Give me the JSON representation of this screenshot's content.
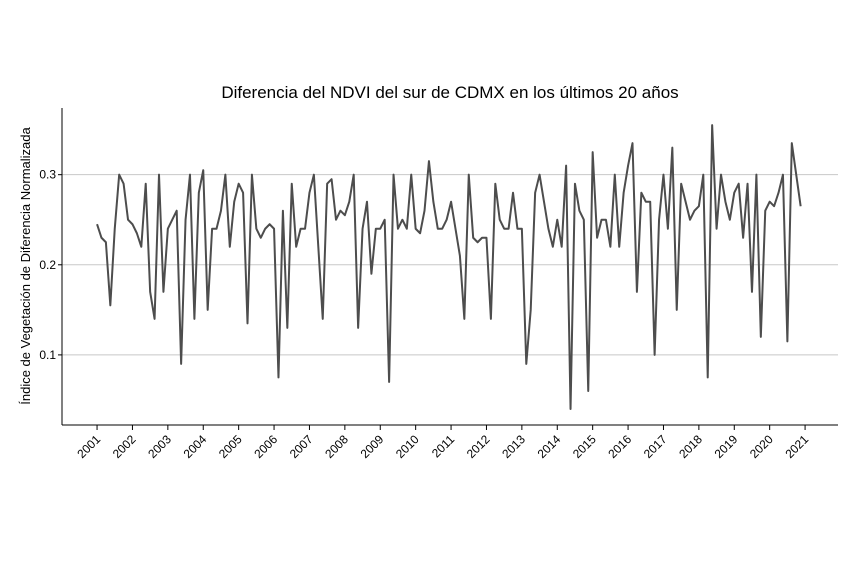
{
  "chart_data": {
    "type": "line",
    "title": "Diferencia del NDVI del sur de CDMX en los últimos 20 años",
    "y_label": "Índice de Vegetación de Diferencia Normalizada",
    "xlim": [
      2000.01,
      2021.93
    ],
    "ylim": [
      0.0222,
      0.374
    ],
    "xticks": [
      2001,
      2002,
      2003,
      2004,
      2005,
      2006,
      2007,
      2008,
      2009,
      2010,
      2011,
      2012,
      2013,
      2014,
      2015,
      2016,
      2017,
      2018,
      2019,
      2020,
      2021
    ],
    "yticks": [
      0.1,
      0.2,
      0.3
    ],
    "grid": true,
    "series": [
      {
        "color": "#4d4d4d",
        "x": [
          2001,
          2001.125,
          2001.25,
          2001.375,
          2001.5,
          2001.625,
          2001.75,
          2001.875,
          2002,
          2002.125,
          2002.25,
          2002.375,
          2002.5,
          2002.625,
          2002.75,
          2002.875,
          2003,
          2003.125,
          2003.25,
          2003.375,
          2003.5,
          2003.625,
          2003.75,
          2003.875,
          2004,
          2004.125,
          2004.25,
          2004.375,
          2004.5,
          2004.625,
          2004.75,
          2004.875,
          2005,
          2005.125,
          2005.25,
          2005.375,
          2005.5,
          2005.625,
          2005.75,
          2005.875,
          2006,
          2006.125,
          2006.25,
          2006.375,
          2006.5,
          2006.625,
          2006.75,
          2006.875,
          2007,
          2007.125,
          2007.25,
          2007.375,
          2007.5,
          2007.625,
          2007.75,
          2007.875,
          2008,
          2008.125,
          2008.25,
          2008.375,
          2008.5,
          2008.625,
          2008.75,
          2008.875,
          2009,
          2009.125,
          2009.25,
          2009.375,
          2009.5,
          2009.625,
          2009.75,
          2009.875,
          2010,
          2010.125,
          2010.25,
          2010.375,
          2010.5,
          2010.625,
          2010.75,
          2010.875,
          2011,
          2011.125,
          2011.25,
          2011.375,
          2011.5,
          2011.625,
          2011.75,
          2011.875,
          2012,
          2012.125,
          2012.25,
          2012.375,
          2012.5,
          2012.625,
          2012.75,
          2012.875,
          2013,
          2013.125,
          2013.25,
          2013.375,
          2013.5,
          2013.625,
          2013.75,
          2013.875,
          2014,
          2014.125,
          2014.25,
          2014.375,
          2014.5,
          2014.625,
          2014.75,
          2014.875,
          2015,
          2015.125,
          2015.25,
          2015.375,
          2015.5,
          2015.625,
          2015.75,
          2015.875,
          2016,
          2016.125,
          2016.25,
          2016.375,
          2016.5,
          2016.625,
          2016.75,
          2016.875,
          2017,
          2017.125,
          2017.25,
          2017.375,
          2017.5,
          2017.625,
          2017.75,
          2017.875,
          2018,
          2018.125,
          2018.25,
          2018.375,
          2018.5,
          2018.625,
          2018.75,
          2018.875,
          2019,
          2019.125,
          2019.25,
          2019.375,
          2019.5,
          2019.625,
          2019.75,
          2019.875,
          2020,
          2020.125,
          2020.25,
          2020.375,
          2020.5,
          2020.625,
          2020.75,
          2020.875
        ],
        "values": [
          0.245,
          0.23,
          0.225,
          0.155,
          0.24,
          0.3,
          0.29,
          0.25,
          0.245,
          0.235,
          0.22,
          0.29,
          0.17,
          0.14,
          0.3,
          0.17,
          0.24,
          0.25,
          0.26,
          0.09,
          0.25,
          0.3,
          0.14,
          0.28,
          0.305,
          0.15,
          0.24,
          0.24,
          0.26,
          0.3,
          0.22,
          0.27,
          0.29,
          0.28,
          0.135,
          0.3,
          0.24,
          0.23,
          0.24,
          0.245,
          0.24,
          0.075,
          0.26,
          0.13,
          0.29,
          0.22,
          0.24,
          0.24,
          0.28,
          0.3,
          0.22,
          0.14,
          0.29,
          0.295,
          0.25,
          0.26,
          0.255,
          0.27,
          0.3,
          0.13,
          0.24,
          0.27,
          0.19,
          0.24,
          0.24,
          0.25,
          0.07,
          0.3,
          0.24,
          0.25,
          0.24,
          0.3,
          0.24,
          0.235,
          0.26,
          0.315,
          0.27,
          0.24,
          0.24,
          0.25,
          0.27,
          0.24,
          0.21,
          0.14,
          0.3,
          0.23,
          0.225,
          0.23,
          0.23,
          0.14,
          0.29,
          0.25,
          0.24,
          0.24,
          0.28,
          0.24,
          0.24,
          0.09,
          0.15,
          0.28,
          0.3,
          0.27,
          0.24,
          0.22,
          0.25,
          0.22,
          0.31,
          0.04,
          0.29,
          0.26,
          0.25,
          0.06,
          0.325,
          0.23,
          0.25,
          0.25,
          0.22,
          0.3,
          0.22,
          0.28,
          0.31,
          0.335,
          0.17,
          0.28,
          0.27,
          0.27,
          0.1,
          0.25,
          0.3,
          0.24,
          0.33,
          0.15,
          0.29,
          0.27,
          0.25,
          0.26,
          0.265,
          0.3,
          0.075,
          0.355,
          0.24,
          0.3,
          0.27,
          0.25,
          0.28,
          0.29,
          0.23,
          0.29,
          0.17,
          0.3,
          0.12,
          0.26,
          0.27,
          0.265,
          0.28,
          0.3,
          0.115,
          0.335,
          0.3,
          0.265
        ]
      }
    ]
  }
}
